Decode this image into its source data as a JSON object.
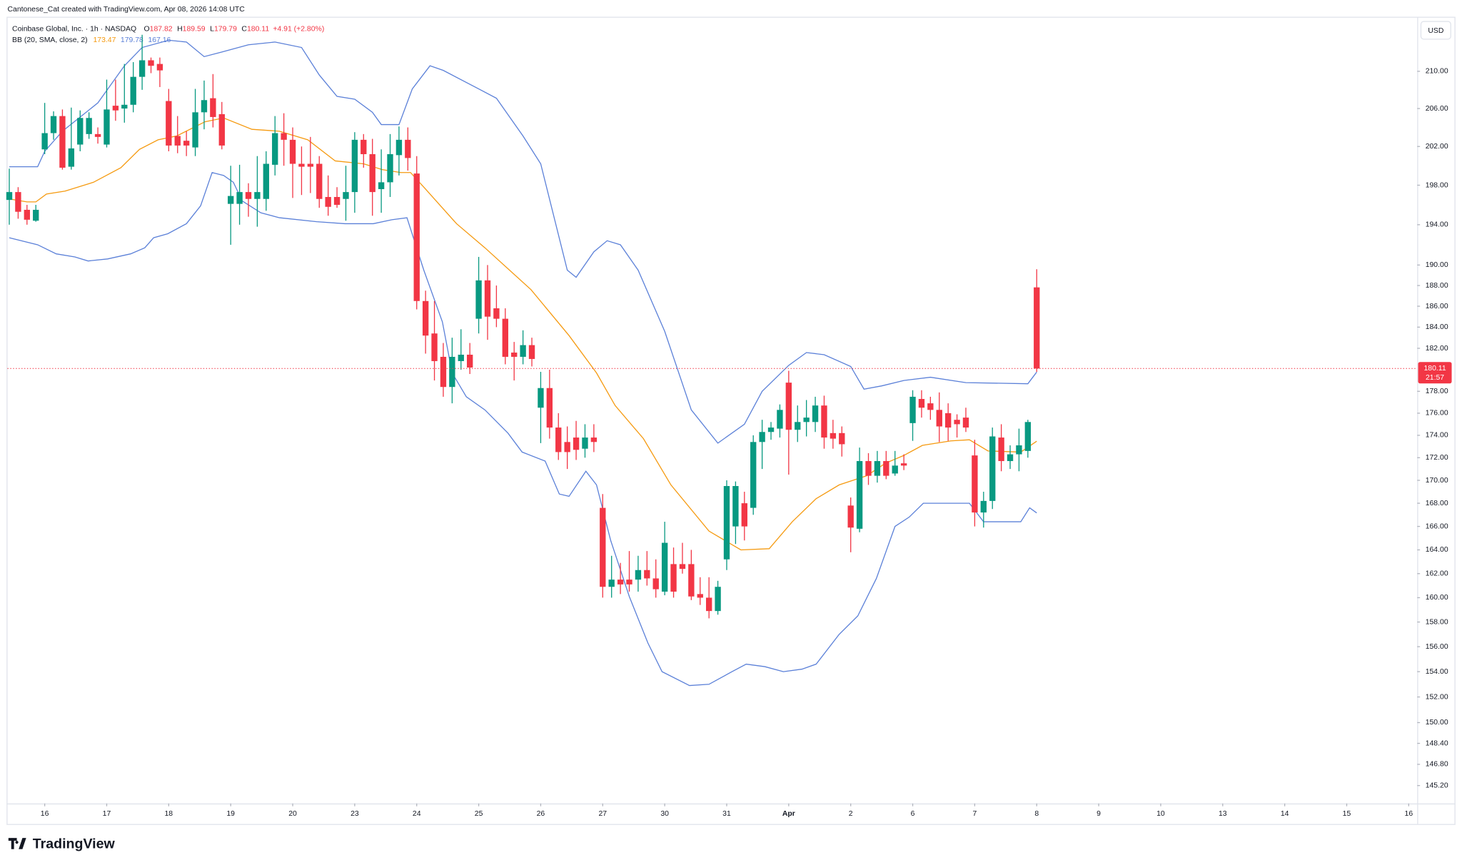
{
  "header": {
    "credit": "Cantonese_Cat created with TradingView.com, Apr 08, 2026 14:08 UTC"
  },
  "branding": "TradingView",
  "chart_data": {
    "type": "candlestick",
    "title": "Coinbase Global, Inc. · 1h · NASDAQ",
    "legend": {
      "open_label": "O",
      "high_label": "H",
      "low_label": "L",
      "close_label": "C",
      "change": "+4.91 (+2.80%)",
      "indicator": "BB (20, SMA, close, 2)"
    },
    "currency": "USD",
    "countdown": "21:57",
    "log_scale": true,
    "grid": false,
    "up_color": "#089981",
    "down_color": "#f23645",
    "candles": {
      "open": [
        196.5,
        197.3,
        195.5,
        194.4,
        201.7,
        203.4,
        205.2,
        199.9,
        202.2,
        203.3,
        203.3,
        202.2,
        206.3,
        206.0,
        206.4,
        209.4,
        211.2,
        210.8,
        206.8,
        203.1,
        202.6,
        201.9,
        205.6,
        207.1,
        205.4,
        196.1,
        196.1,
        197.3,
        196.6,
        196.6,
        200.1,
        203.4,
        202.7,
        200.2,
        200.2,
        200.2,
        196.8,
        196.8,
        196.6,
        197.3,
        202.7,
        201.2,
        197.6,
        198.3,
        201.1,
        202.7,
        199.2,
        186.5,
        183.4,
        181.2,
        178.4,
        180.8,
        181.4,
        184.8,
        188.5,
        185.8,
        184.8,
        181.6,
        181.2,
        182.3,
        176.5,
        178.3,
        174.7,
        173.4,
        173.8,
        172.8,
        173.8,
        167.6,
        160.9,
        161.5,
        161.5,
        161.5,
        162.3,
        161.6,
        160.5,
        162.8,
        162.8,
        162.8,
        160.3,
        160.0,
        158.9,
        163.2,
        166.0,
        168.0,
        167.6,
        173.4,
        174.3,
        174.6,
        178.8,
        174.5,
        175.2,
        175.2,
        176.7,
        174.2,
        174.2,
        167.8,
        165.8,
        171.7,
        170.4,
        171.7,
        170.6,
        171.5,
        175.1,
        177.3,
        176.9,
        176.3,
        176.0,
        175.4,
        175.6,
        172.2,
        167.2,
        168.2,
        173.8,
        171.7,
        172.3,
        172.6,
        187.82
      ],
      "high": [
        199.7,
        197.8,
        196.0,
        196.0,
        206.6,
        205.7,
        205.9,
        206.1,
        205.8,
        205.6,
        204.0,
        209.1,
        209.1,
        210.8,
        211.0,
        214.0,
        211.5,
        211.5,
        208.1,
        205.2,
        203.6,
        208.1,
        209.0,
        209.7,
        206.7,
        200.0,
        200.1,
        198.2,
        201.0,
        201.5,
        205.2,
        205.5,
        204.0,
        202.0,
        203.0,
        201.0,
        199.0,
        197.8,
        200.0,
        203.5,
        203.3,
        202.8,
        201.7,
        203.3,
        204.1,
        204.0,
        201.0,
        187.5,
        186.5,
        182.5,
        183.0,
        183.8,
        182.5,
        190.8,
        190.0,
        188.0,
        185.8,
        182.6,
        183.7,
        183.0,
        179.8,
        180.0,
        176.0,
        174.8,
        175.3,
        175.0,
        175.0,
        168.8,
        163.5,
        162.9,
        163.9,
        163.5,
        163.9,
        163.2,
        166.4,
        164.2,
        164.6,
        164.0,
        161.7,
        161.7,
        161.4,
        170.0,
        169.9,
        169.0,
        174.0,
        175.4,
        175.2,
        176.8,
        179.9,
        176.7,
        177.2,
        177.5,
        177.6,
        175.4,
        174.8,
        168.5,
        172.9,
        172.4,
        172.6,
        172.6,
        172.6,
        172.3,
        178.1,
        178.1,
        177.5,
        177.9,
        176.9,
        175.9,
        176.5,
        173.6,
        169.0,
        174.7,
        175.0,
        173.1,
        174.6,
        175.4,
        189.59
      ],
      "low": [
        194.0,
        194.6,
        194.0,
        194.3,
        201.2,
        202.7,
        199.6,
        199.6,
        201.5,
        202.8,
        202.3,
        201.9,
        204.7,
        204.5,
        205.6,
        208.0,
        209.8,
        208.3,
        201.5,
        201.3,
        201.0,
        201.0,
        203.8,
        204.0,
        201.7,
        192.0,
        194.0,
        194.8,
        193.8,
        195.4,
        199.0,
        200.0,
        196.7,
        197.0,
        197.2,
        195.7,
        194.9,
        195.7,
        194.4,
        195.2,
        199.8,
        194.9,
        195.2,
        196.8,
        199.0,
        199.5,
        185.7,
        181.5,
        179.0,
        177.5,
        176.9,
        180.0,
        179.6,
        183.4,
        182.8,
        184.0,
        180.5,
        179.0,
        180.5,
        180.3,
        173.3,
        173.7,
        171.8,
        171.0,
        171.8,
        172.0,
        172.5,
        160.0,
        160.0,
        160.3,
        160.5,
        160.5,
        161.0,
        160.0,
        160.2,
        160.0,
        162.0,
        159.8,
        159.4,
        158.3,
        158.6,
        162.3,
        164.5,
        164.8,
        167.0,
        171.0,
        173.6,
        173.8,
        170.5,
        173.4,
        173.9,
        174.3,
        172.8,
        172.8,
        172.1,
        163.8,
        165.5,
        169.6,
        169.8,
        170.1,
        170.4,
        170.9,
        173.5,
        175.6,
        175.4,
        173.4,
        173.5,
        173.8,
        174.3,
        166.0,
        165.9,
        167.5,
        170.8,
        171.0,
        170.8,
        172.0,
        179.79
      ],
      "close": [
        197.3,
        195.3,
        194.5,
        195.5,
        203.4,
        205.2,
        199.8,
        201.8,
        205.0,
        205.0,
        203.0,
        205.9,
        205.8,
        206.4,
        209.4,
        211.2,
        210.6,
        210.1,
        202.1,
        202.1,
        202.1,
        205.6,
        206.9,
        205.1,
        202.1,
        196.9,
        197.3,
        196.6,
        197.3,
        200.2,
        203.4,
        202.7,
        200.2,
        199.9,
        199.9,
        196.6,
        195.8,
        196.0,
        197.3,
        202.7,
        201.2,
        197.3,
        198.3,
        201.2,
        202.7,
        200.8,
        186.5,
        183.2,
        180.8,
        178.4,
        181.2,
        181.4,
        180.2,
        188.5,
        185.0,
        184.8,
        181.2,
        181.2,
        182.3,
        181.0,
        178.3,
        174.7,
        172.5,
        172.5,
        172.7,
        173.8,
        173.4,
        160.9,
        161.5,
        161.1,
        161.1,
        162.3,
        161.6,
        160.7,
        164.6,
        160.5,
        162.4,
        160.1,
        160.0,
        158.9,
        160.9,
        169.5,
        169.5,
        166.0,
        173.4,
        174.3,
        174.7,
        176.3,
        174.5,
        175.2,
        175.6,
        176.7,
        173.8,
        173.7,
        173.2,
        165.9,
        171.7,
        170.4,
        171.7,
        170.4,
        171.3,
        171.3,
        177.5,
        176.5,
        176.3,
        174.8,
        174.7,
        175.0,
        174.7,
        167.2,
        168.2,
        173.9,
        171.7,
        172.3,
        173.1,
        175.2,
        180.11
      ]
    },
    "bands": [
      {
        "color": "#f59a10",
        "x": [
          0,
          2,
          3,
          4.2,
          6.3,
          9.5,
          12.6,
          14.7,
          16.8,
          18.9,
          22.1,
          24.2,
          27.4,
          30.5,
          33.7,
          36.8,
          40,
          42.1,
          44.2,
          45.3,
          46.8,
          50.5,
          53.7,
          58.9,
          63.2,
          66.3,
          68.4,
          71.6,
          74.7,
          79,
          82.6,
          85.8,
          88.4,
          91.1,
          93.7,
          96.8,
          98.9,
          101,
          103.1,
          106.3,
          108.4,
          110.5,
          114.2,
          116
        ],
        "values": [
          196.6,
          196.3,
          196.3,
          197.1,
          197.4,
          198.3,
          199.8,
          201.7,
          202.7,
          203.1,
          204.6,
          205.0,
          203.8,
          203.6,
          202.7,
          200.5,
          200.2,
          199.6,
          199.3,
          199.3,
          197.8,
          194.1,
          191.7,
          187.6,
          183.2,
          179.7,
          176.7,
          173.7,
          169.6,
          165.6,
          164.0,
          164.1,
          166.4,
          168.4,
          169.6,
          170.4,
          171.5,
          172.2,
          173.1,
          173.5,
          173.6,
          172.6,
          172.5,
          173.47
        ]
      },
      {
        "color": "#5b80d8",
        "x": [
          0,
          3.2,
          4,
          6,
          10,
          13,
          15,
          18,
          20,
          22,
          24,
          27,
          30,
          33,
          35,
          37,
          39,
          41,
          42,
          44,
          45.5,
          47.5,
          49,
          53,
          55,
          58,
          60,
          63,
          64,
          66,
          67.5,
          69,
          71,
          74,
          77,
          80,
          83,
          85,
          88,
          90,
          92,
          95,
          96.5,
          98.5,
          101,
          104,
          108,
          115,
          116
        ],
        "values": [
          199.9,
          199.9,
          201.5,
          203.6,
          206.6,
          210.6,
          212.6,
          213.4,
          213.2,
          211.6,
          212.1,
          212.9,
          213.2,
          212.6,
          209.6,
          207.3,
          207.0,
          205.6,
          204.3,
          204.3,
          208.1,
          210.6,
          210.1,
          208.1,
          207.1,
          203.1,
          200.2,
          189.5,
          188.8,
          191.3,
          192.4,
          192.0,
          189.5,
          183.6,
          176.3,
          173.3,
          175.0,
          178.0,
          180.4,
          181.6,
          181.4,
          180.3,
          178.2,
          178.5,
          179.0,
          179.3,
          178.8,
          178.7,
          179.78
        ]
      },
      {
        "color": "#5b80d8",
        "x": [
          0,
          3.2,
          5.3,
          7.4,
          8.9,
          11.1,
          13.7,
          15.3,
          16.3,
          17.9,
          20,
          21.6,
          22.9,
          24.2,
          25.3,
          26.3,
          28.4,
          30.5,
          34.7,
          37.9,
          41.1,
          43.2,
          44.9,
          46.8,
          48.9,
          50,
          51.6,
          53.7,
          56.3,
          57.9,
          60.5,
          62.1,
          63.2,
          65.1,
          66.3,
          67.9,
          70,
          72.1,
          73.7,
          76.8,
          79,
          81.6,
          83.2,
          85.3,
          87.4,
          89.5,
          91.1,
          93.7,
          95.8,
          97.9,
          100,
          101.6,
          103.2,
          108.4,
          110,
          114.2,
          115.2,
          116
        ],
        "values": [
          192.7,
          192.0,
          191.1,
          190.8,
          190.4,
          190.6,
          191.1,
          191.7,
          192.7,
          193.1,
          194.1,
          195.9,
          199.3,
          199.0,
          198.3,
          196.4,
          195.2,
          194.7,
          194.3,
          194.1,
          194.1,
          194.5,
          194.7,
          189.5,
          184.5,
          179.7,
          177.5,
          176.3,
          174.2,
          172.5,
          171.7,
          168.8,
          168.6,
          170.8,
          169.6,
          164.8,
          160.1,
          156.3,
          154.0,
          152.9,
          153.0,
          154.0,
          154.6,
          154.4,
          154.0,
          154.2,
          154.6,
          157.0,
          158.5,
          161.6,
          166.0,
          166.8,
          168.0,
          168.0,
          166.4,
          166.4,
          167.6,
          167.16
        ]
      }
    ],
    "xlim": [
      -0.2,
      158.8
    ],
    "xticks": [
      {
        "value": 4,
        "label": "16"
      },
      {
        "value": 11,
        "label": "17"
      },
      {
        "value": 18,
        "label": "18"
      },
      {
        "value": 25,
        "label": "19"
      },
      {
        "value": 32,
        "label": "20"
      },
      {
        "value": 39,
        "label": "23"
      },
      {
        "value": 46,
        "label": "24"
      },
      {
        "value": 53,
        "label": "25"
      },
      {
        "value": 60,
        "label": "26"
      },
      {
        "value": 67,
        "label": "27"
      },
      {
        "value": 74,
        "label": "30"
      },
      {
        "value": 81,
        "label": "31"
      },
      {
        "value": 88,
        "label": "Apr"
      },
      {
        "value": 95,
        "label": "2"
      },
      {
        "value": 102,
        "label": "6"
      },
      {
        "value": 109,
        "label": "7"
      },
      {
        "value": 116,
        "label": "8"
      },
      {
        "value": 123,
        "label": "9"
      },
      {
        "value": 130,
        "label": "10"
      },
      {
        "value": 137,
        "label": "13"
      },
      {
        "value": 144,
        "label": "14"
      },
      {
        "value": 151,
        "label": "15"
      },
      {
        "value": 158,
        "label": "16"
      }
    ],
    "ylim": [
      144.0,
      216.0
    ],
    "yticks": [
      {
        "value": 210,
        "label": "210.00"
      },
      {
        "value": 206,
        "label": "206.00"
      },
      {
        "value": 202,
        "label": "202.00"
      },
      {
        "value": 198,
        "label": "198.00"
      },
      {
        "value": 194,
        "label": "194.00"
      },
      {
        "value": 190,
        "label": "190.00"
      },
      {
        "value": 188,
        "label": "188.00"
      },
      {
        "value": 186,
        "label": "186.00"
      },
      {
        "value": 184,
        "label": "184.00"
      },
      {
        "value": 182,
        "label": "182.00"
      },
      {
        "value": 178,
        "label": "178.00"
      },
      {
        "value": 176,
        "label": "176.00"
      },
      {
        "value": 174,
        "label": "174.00"
      },
      {
        "value": 172,
        "label": "172.00"
      },
      {
        "value": 170,
        "label": "170.00"
      },
      {
        "value": 168,
        "label": "168.00"
      },
      {
        "value": 166,
        "label": "166.00"
      },
      {
        "value": 164,
        "label": "164.00"
      },
      {
        "value": 162,
        "label": "162.00"
      },
      {
        "value": 160,
        "label": "160.00"
      },
      {
        "value": 158,
        "label": "158.00"
      },
      {
        "value": 156,
        "label": "156.00"
      },
      {
        "value": 154,
        "label": "154.00"
      },
      {
        "value": 152,
        "label": "152.00"
      },
      {
        "value": 150,
        "label": "150.00"
      },
      {
        "value": 148.4,
        "label": "148.40"
      },
      {
        "value": 146.8,
        "label": "146.80"
      },
      {
        "value": 145.2,
        "label": "145.20"
      }
    ]
  }
}
